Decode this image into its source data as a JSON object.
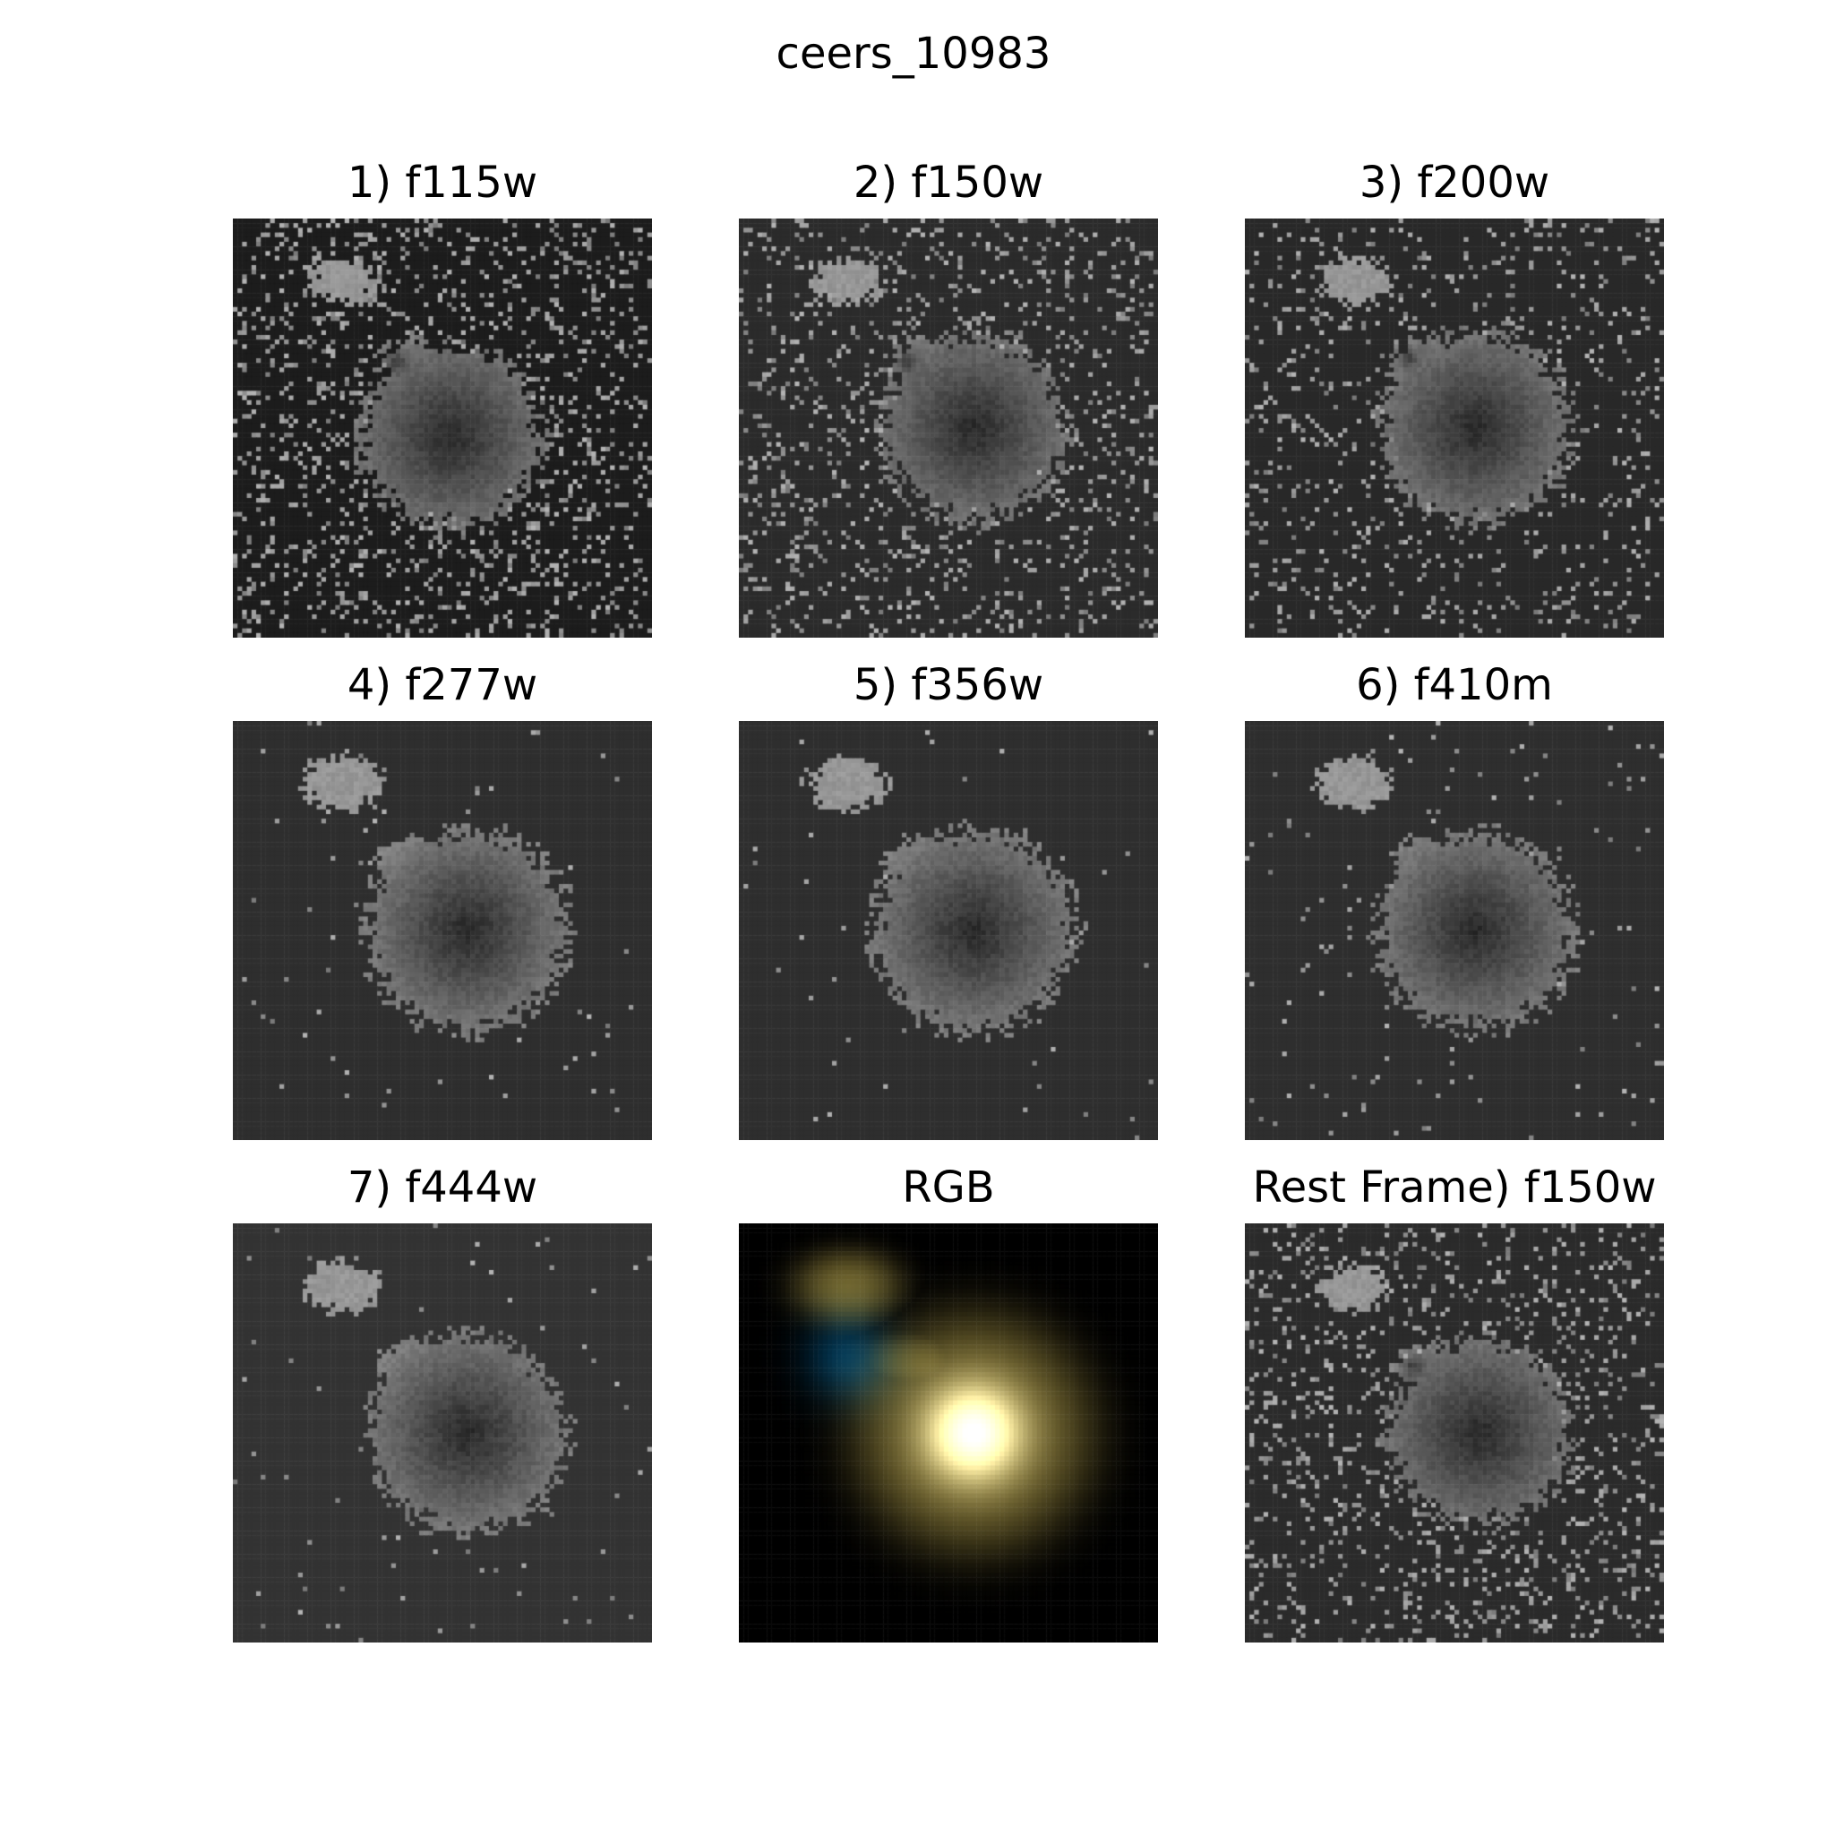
{
  "figure": {
    "title": "ceers_10983"
  },
  "panels": [
    {
      "label": "1) f115w",
      "kind": "gray",
      "background": "#1c1c1c",
      "core": [
        0.52,
        0.52
      ],
      "fill": 0.72,
      "noise": 0.16,
      "blobs": [
        [
          0.26,
          0.15
        ],
        [
          0.44,
          0.34
        ]
      ],
      "hole": [
        0.39,
        0.34
      ]
    },
    {
      "label": "2) f150w",
      "kind": "gray",
      "background": "#2b2b2b",
      "core": [
        0.56,
        0.5
      ],
      "fill": 0.72,
      "noise": 0.14,
      "blobs": [
        [
          0.26,
          0.15
        ],
        [
          0.44,
          0.34
        ]
      ],
      "hole": [
        0.4,
        0.34
      ]
    },
    {
      "label": "3) f200w",
      "kind": "gray",
      "background": "#282828",
      "core": [
        0.55,
        0.5
      ],
      "fill": 0.75,
      "noise": 0.1,
      "blobs": [
        [
          0.26,
          0.15
        ],
        [
          0.44,
          0.34
        ]
      ],
      "hole": [
        0.39,
        0.33
      ]
    },
    {
      "label": "4) f277w",
      "kind": "gray",
      "background": "#2e2e2e",
      "core": [
        0.56,
        0.5
      ],
      "fill": 0.8,
      "noise": 0.01,
      "blobs": [
        [
          0.26,
          0.15
        ],
        [
          0.44,
          0.34
        ]
      ],
      "hole": null
    },
    {
      "label": "5) f356w",
      "kind": "gray",
      "background": "#2e2e2e",
      "core": [
        0.56,
        0.5
      ],
      "fill": 0.8,
      "noise": 0.005,
      "blobs": [
        [
          0.26,
          0.15
        ],
        [
          0.44,
          0.34
        ]
      ],
      "hole": null
    },
    {
      "label": "6) f410m",
      "kind": "gray",
      "background": "#2e2e2e",
      "core": [
        0.55,
        0.5
      ],
      "fill": 0.78,
      "noise": 0.02,
      "blobs": [
        [
          0.26,
          0.15
        ],
        [
          0.44,
          0.34
        ]
      ],
      "hole": null
    },
    {
      "label": "7) f444w",
      "kind": "gray",
      "background": "#333333",
      "core": [
        0.56,
        0.5
      ],
      "fill": 0.78,
      "noise": 0.01,
      "blobs": [
        [
          0.26,
          0.15
        ],
        [
          0.44,
          0.34
        ]
      ],
      "hole": null
    },
    {
      "label": "RGB",
      "kind": "rgb",
      "background": "#000000",
      "core": [
        0.56,
        0.5
      ],
      "fill": 0.78,
      "noise": 0.0,
      "blobs": [
        [
          0.26,
          0.15
        ],
        [
          0.44,
          0.34
        ]
      ],
      "hole": null
    },
    {
      "label": "Rest Frame) f150w",
      "kind": "gray",
      "background": "#2b2b2b",
      "core": [
        0.56,
        0.5
      ],
      "fill": 0.72,
      "noise": 0.14,
      "blobs": [
        [
          0.26,
          0.15
        ],
        [
          0.44,
          0.34
        ]
      ],
      "hole": [
        0.4,
        0.34
      ]
    }
  ]
}
